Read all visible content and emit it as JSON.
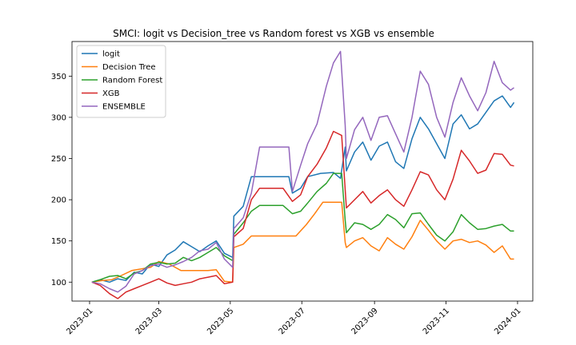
{
  "chart_data": {
    "type": "line",
    "title": "SMCI: logit vs Decision_tree vs Random forest vs XGB vs ensemble",
    "xlabel": "",
    "ylabel": "",
    "xlim": [
      "2022-12-17",
      "2024-01-14"
    ],
    "ylim": [
      77,
      392
    ],
    "x_ticks": [
      "2023-01",
      "2023-03",
      "2023-05",
      "2023-07",
      "2023-09",
      "2023-11",
      "2024-01"
    ],
    "y_ticks": [
      100,
      150,
      200,
      250,
      300,
      350
    ],
    "grid": false,
    "legend_position": "top-left",
    "series": [
      {
        "name": "logit",
        "color": "#1f77b4",
        "points": [
          [
            "2023-01-03",
            100
          ],
          [
            "2023-01-10",
            103
          ],
          [
            "2023-01-18",
            100
          ],
          [
            "2023-01-25",
            104
          ],
          [
            "2023-02-01",
            102
          ],
          [
            "2023-02-08",
            112
          ],
          [
            "2023-02-15",
            110
          ],
          [
            "2023-02-22",
            122
          ],
          [
            "2023-03-01",
            119
          ],
          [
            "2023-03-08",
            133
          ],
          [
            "2023-03-15",
            139
          ],
          [
            "2023-03-22",
            149
          ],
          [
            "2023-03-29",
            143
          ],
          [
            "2023-04-05",
            137
          ],
          [
            "2023-04-12",
            144
          ],
          [
            "2023-04-19",
            150
          ],
          [
            "2023-04-26",
            135
          ],
          [
            "2023-05-03",
            130
          ],
          [
            "2023-05-04",
            180
          ],
          [
            "2023-05-12",
            192
          ],
          [
            "2023-05-19",
            228
          ],
          [
            "2023-06-05",
            228
          ],
          [
            "2023-06-20",
            228
          ],
          [
            "2023-06-23",
            208
          ],
          [
            "2023-06-30",
            214
          ],
          [
            "2023-07-06",
            228
          ],
          [
            "2023-07-17",
            232
          ],
          [
            "2023-07-28",
            233
          ],
          [
            "2023-08-03",
            226
          ],
          [
            "2023-08-07",
            264
          ],
          [
            "2023-08-08",
            235
          ],
          [
            "2023-08-15",
            258
          ],
          [
            "2023-08-22",
            270
          ],
          [
            "2023-08-29",
            248
          ],
          [
            "2023-09-05",
            265
          ],
          [
            "2023-09-12",
            270
          ],
          [
            "2023-09-19",
            246
          ],
          [
            "2023-09-26",
            238
          ],
          [
            "2023-10-03",
            274
          ],
          [
            "2023-10-10",
            300
          ],
          [
            "2023-10-17",
            286
          ],
          [
            "2023-10-24",
            268
          ],
          [
            "2023-10-31",
            250
          ],
          [
            "2023-11-07",
            292
          ],
          [
            "2023-11-14",
            303
          ],
          [
            "2023-11-21",
            286
          ],
          [
            "2023-11-28",
            292
          ],
          [
            "2023-12-05",
            306
          ],
          [
            "2023-12-12",
            320
          ],
          [
            "2023-12-19",
            326
          ],
          [
            "2023-12-26",
            312
          ],
          [
            "2023-12-29",
            318
          ]
        ]
      },
      {
        "name": "Decision Tree",
        "color": "#ff7f0e",
        "points": [
          [
            "2023-01-03",
            100
          ],
          [
            "2023-01-12",
            102
          ],
          [
            "2023-01-20",
            103
          ],
          [
            "2023-01-28",
            108
          ],
          [
            "2023-02-06",
            114
          ],
          [
            "2023-02-14",
            116
          ],
          [
            "2023-02-22",
            118
          ],
          [
            "2023-03-01",
            125
          ],
          [
            "2023-03-10",
            122
          ],
          [
            "2023-03-20",
            114
          ],
          [
            "2023-03-30",
            114
          ],
          [
            "2023-04-12",
            114
          ],
          [
            "2023-04-19",
            115
          ],
          [
            "2023-04-26",
            101
          ],
          [
            "2023-05-03",
            100
          ],
          [
            "2023-05-04",
            142
          ],
          [
            "2023-05-12",
            146
          ],
          [
            "2023-05-19",
            156
          ],
          [
            "2023-06-05",
            156
          ],
          [
            "2023-06-26",
            156
          ],
          [
            "2023-07-05",
            170
          ],
          [
            "2023-07-12",
            183
          ],
          [
            "2023-07-19",
            197
          ],
          [
            "2023-07-28",
            197
          ],
          [
            "2023-08-04",
            197
          ],
          [
            "2023-08-07",
            148
          ],
          [
            "2023-08-08",
            142
          ],
          [
            "2023-08-15",
            150
          ],
          [
            "2023-08-22",
            154
          ],
          [
            "2023-08-29",
            144
          ],
          [
            "2023-09-05",
            138
          ],
          [
            "2023-09-12",
            154
          ],
          [
            "2023-09-19",
            146
          ],
          [
            "2023-09-26",
            140
          ],
          [
            "2023-10-03",
            155
          ],
          [
            "2023-10-10",
            175
          ],
          [
            "2023-10-17",
            163
          ],
          [
            "2023-10-24",
            150
          ],
          [
            "2023-10-31",
            140
          ],
          [
            "2023-11-07",
            150
          ],
          [
            "2023-11-14",
            152
          ],
          [
            "2023-11-21",
            148
          ],
          [
            "2023-11-28",
            150
          ],
          [
            "2023-12-05",
            145
          ],
          [
            "2023-12-12",
            136
          ],
          [
            "2023-12-19",
            144
          ],
          [
            "2023-12-26",
            128
          ],
          [
            "2023-12-29",
            128
          ]
        ]
      },
      {
        "name": "Random Forest",
        "color": "#2ca02c",
        "points": [
          [
            "2023-01-03",
            100
          ],
          [
            "2023-01-10",
            103
          ],
          [
            "2023-01-18",
            107
          ],
          [
            "2023-01-25",
            108
          ],
          [
            "2023-02-01",
            104
          ],
          [
            "2023-02-08",
            111
          ],
          [
            "2023-02-15",
            114
          ],
          [
            "2023-02-22",
            122
          ],
          [
            "2023-03-01",
            124
          ],
          [
            "2023-03-08",
            122
          ],
          [
            "2023-03-15",
            123
          ],
          [
            "2023-03-22",
            130
          ],
          [
            "2023-03-29",
            126
          ],
          [
            "2023-04-05",
            130
          ],
          [
            "2023-04-12",
            136
          ],
          [
            "2023-04-19",
            142
          ],
          [
            "2023-04-26",
            132
          ],
          [
            "2023-05-03",
            126
          ],
          [
            "2023-05-04",
            158
          ],
          [
            "2023-05-12",
            172
          ],
          [
            "2023-05-19",
            186
          ],
          [
            "2023-05-26",
            193
          ],
          [
            "2023-06-15",
            193
          ],
          [
            "2023-06-23",
            183
          ],
          [
            "2023-06-30",
            186
          ],
          [
            "2023-07-06",
            196
          ],
          [
            "2023-07-14",
            210
          ],
          [
            "2023-07-22",
            220
          ],
          [
            "2023-07-28",
            232
          ],
          [
            "2023-08-04",
            232
          ],
          [
            "2023-08-07",
            175
          ],
          [
            "2023-08-08",
            160
          ],
          [
            "2023-08-15",
            172
          ],
          [
            "2023-08-22",
            170
          ],
          [
            "2023-08-29",
            164
          ],
          [
            "2023-09-05",
            170
          ],
          [
            "2023-09-12",
            182
          ],
          [
            "2023-09-19",
            176
          ],
          [
            "2023-09-26",
            166
          ],
          [
            "2023-10-03",
            183
          ],
          [
            "2023-10-10",
            184
          ],
          [
            "2023-10-17",
            170
          ],
          [
            "2023-10-24",
            157
          ],
          [
            "2023-10-31",
            150
          ],
          [
            "2023-11-07",
            161
          ],
          [
            "2023-11-14",
            182
          ],
          [
            "2023-11-21",
            172
          ],
          [
            "2023-11-28",
            164
          ],
          [
            "2023-12-05",
            165
          ],
          [
            "2023-12-12",
            168
          ],
          [
            "2023-12-19",
            170
          ],
          [
            "2023-12-26",
            162
          ],
          [
            "2023-12-29",
            162
          ]
        ]
      },
      {
        "name": "XGB",
        "color": "#d62728",
        "points": [
          [
            "2023-01-03",
            100
          ],
          [
            "2023-01-10",
            96
          ],
          [
            "2023-01-18",
            86
          ],
          [
            "2023-01-25",
            80
          ],
          [
            "2023-02-01",
            88
          ],
          [
            "2023-02-08",
            92
          ],
          [
            "2023-02-15",
            96
          ],
          [
            "2023-02-22",
            100
          ],
          [
            "2023-03-01",
            104
          ],
          [
            "2023-03-08",
            99
          ],
          [
            "2023-03-15",
            96
          ],
          [
            "2023-03-22",
            98
          ],
          [
            "2023-03-29",
            100
          ],
          [
            "2023-04-05",
            104
          ],
          [
            "2023-04-12",
            106
          ],
          [
            "2023-04-19",
            108
          ],
          [
            "2023-04-26",
            98
          ],
          [
            "2023-05-03",
            100
          ],
          [
            "2023-05-04",
            155
          ],
          [
            "2023-05-12",
            165
          ],
          [
            "2023-05-19",
            200
          ],
          [
            "2023-05-26",
            214
          ],
          [
            "2023-06-15",
            214
          ],
          [
            "2023-06-23",
            198
          ],
          [
            "2023-06-30",
            206
          ],
          [
            "2023-07-06",
            228
          ],
          [
            "2023-07-14",
            243
          ],
          [
            "2023-07-22",
            263
          ],
          [
            "2023-07-28",
            283
          ],
          [
            "2023-08-04",
            278
          ],
          [
            "2023-08-07",
            212
          ],
          [
            "2023-08-08",
            190
          ],
          [
            "2023-08-15",
            200
          ],
          [
            "2023-08-22",
            210
          ],
          [
            "2023-08-29",
            196
          ],
          [
            "2023-09-05",
            205
          ],
          [
            "2023-09-12",
            212
          ],
          [
            "2023-09-19",
            200
          ],
          [
            "2023-09-26",
            192
          ],
          [
            "2023-10-03",
            212
          ],
          [
            "2023-10-10",
            234
          ],
          [
            "2023-10-17",
            230
          ],
          [
            "2023-10-24",
            212
          ],
          [
            "2023-10-31",
            200
          ],
          [
            "2023-11-07",
            225
          ],
          [
            "2023-11-14",
            260
          ],
          [
            "2023-11-21",
            247
          ],
          [
            "2023-11-28",
            232
          ],
          [
            "2023-12-05",
            236
          ],
          [
            "2023-12-12",
            256
          ],
          [
            "2023-12-19",
            255
          ],
          [
            "2023-12-26",
            242
          ],
          [
            "2023-12-29",
            241
          ]
        ]
      },
      {
        "name": "ENSEMBLE",
        "color": "#9467bd",
        "points": [
          [
            "2023-01-03",
            100
          ],
          [
            "2023-01-10",
            98
          ],
          [
            "2023-01-18",
            92
          ],
          [
            "2023-01-25",
            88
          ],
          [
            "2023-02-01",
            95
          ],
          [
            "2023-02-08",
            110
          ],
          [
            "2023-02-15",
            114
          ],
          [
            "2023-02-22",
            120
          ],
          [
            "2023-03-01",
            122
          ],
          [
            "2023-03-08",
            118
          ],
          [
            "2023-03-15",
            121
          ],
          [
            "2023-03-22",
            125
          ],
          [
            "2023-03-29",
            130
          ],
          [
            "2023-04-05",
            138
          ],
          [
            "2023-04-12",
            140
          ],
          [
            "2023-04-19",
            148
          ],
          [
            "2023-04-26",
            128
          ],
          [
            "2023-05-03",
            118
          ],
          [
            "2023-05-04",
            165
          ],
          [
            "2023-05-12",
            178
          ],
          [
            "2023-05-19",
            208
          ],
          [
            "2023-05-26",
            264
          ],
          [
            "2023-06-15",
            264
          ],
          [
            "2023-06-20",
            264
          ],
          [
            "2023-06-23",
            210
          ],
          [
            "2023-06-30",
            242
          ],
          [
            "2023-07-06",
            268
          ],
          [
            "2023-07-14",
            292
          ],
          [
            "2023-07-22",
            338
          ],
          [
            "2023-07-28",
            366
          ],
          [
            "2023-08-03",
            380
          ],
          [
            "2023-08-07",
            290
          ],
          [
            "2023-08-08",
            250
          ],
          [
            "2023-08-15",
            285
          ],
          [
            "2023-08-22",
            300
          ],
          [
            "2023-08-29",
            272
          ],
          [
            "2023-09-05",
            300
          ],
          [
            "2023-09-12",
            302
          ],
          [
            "2023-09-19",
            280
          ],
          [
            "2023-09-26",
            258
          ],
          [
            "2023-10-03",
            300
          ],
          [
            "2023-10-10",
            356
          ],
          [
            "2023-10-17",
            340
          ],
          [
            "2023-10-24",
            300
          ],
          [
            "2023-10-31",
            276
          ],
          [
            "2023-11-07",
            318
          ],
          [
            "2023-11-14",
            348
          ],
          [
            "2023-11-21",
            326
          ],
          [
            "2023-11-28",
            308
          ],
          [
            "2023-12-05",
            330
          ],
          [
            "2023-12-12",
            368
          ],
          [
            "2023-12-19",
            342
          ],
          [
            "2023-12-26",
            333
          ],
          [
            "2023-12-29",
            336
          ]
        ]
      }
    ]
  }
}
